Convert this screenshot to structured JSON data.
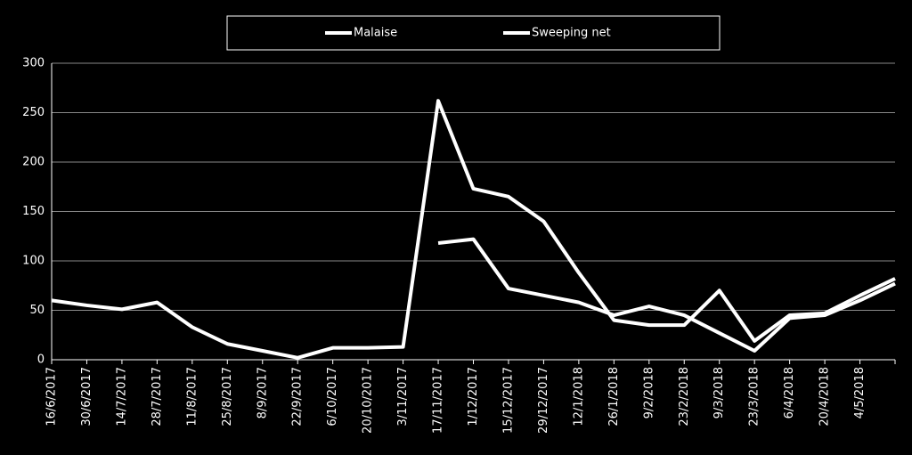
{
  "chart_data": {
    "type": "line",
    "categories": [
      "16/6/2017",
      "30/6/2017",
      "14/7/2017",
      "28/7/2017",
      "11/8/2017",
      "25/8/2017",
      "8/9/2017",
      "22/9/2017",
      "6/10/2017",
      "20/10/2017",
      "3/11/2017",
      "17/11/2017",
      "1/12/2017",
      "15/12/2017",
      "29/12/2017",
      "12/1/2018",
      "26/1/2018",
      "9/2/2018",
      "23/2/2018",
      "9/3/2018",
      "23/3/2018",
      "6/4/2018",
      "20/4/2018",
      "4/5/2018",
      null
    ],
    "series": [
      {
        "name": "Malaise",
        "color": "#ffffff",
        "values": [
          60,
          55,
          51,
          58,
          33,
          16,
          9,
          2,
          12,
          12,
          13,
          262,
          173,
          165,
          140,
          88,
          40,
          35,
          35,
          70,
          19,
          45,
          47,
          65,
          82
        ]
      },
      {
        "name": "Sweeping net",
        "color": "#ffffff",
        "values": [
          null,
          null,
          null,
          null,
          null,
          null,
          null,
          null,
          null,
          null,
          null,
          118,
          122,
          72,
          65,
          58,
          45,
          54,
          45,
          27,
          9,
          42,
          45,
          60,
          77
        ]
      }
    ],
    "ylim": [
      0,
      300
    ],
    "yticks": [
      0,
      50,
      100,
      150,
      200,
      250,
      300
    ],
    "grid": true,
    "legend": "top"
  }
}
